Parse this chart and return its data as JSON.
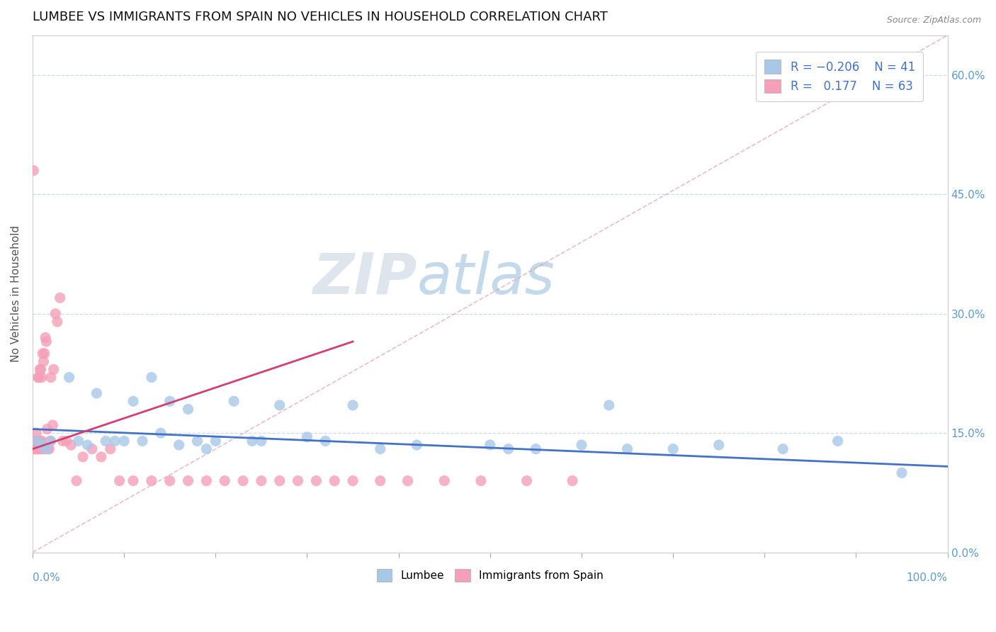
{
  "title": "LUMBEE VS IMMIGRANTS FROM SPAIN NO VEHICLES IN HOUSEHOLD CORRELATION CHART",
  "source_text": "Source: ZipAtlas.com",
  "ylabel": "No Vehicles in Household",
  "lumbee_color": "#a8c8e8",
  "spain_color": "#f4a0b8",
  "lumbee_line_color": "#4472c4",
  "spain_line_color": "#d04070",
  "diagonal_color": "#e0a0b8",
  "watermark_zip": "ZIP",
  "watermark_atlas": "atlas",
  "lumbee_x": [
    0.005,
    0.01,
    0.015,
    0.02,
    0.04,
    0.05,
    0.06,
    0.07,
    0.08,
    0.09,
    0.1,
    0.11,
    0.12,
    0.13,
    0.14,
    0.15,
    0.16,
    0.17,
    0.18,
    0.19,
    0.2,
    0.22,
    0.24,
    0.25,
    0.27,
    0.3,
    0.32,
    0.35,
    0.38,
    0.42,
    0.5,
    0.52,
    0.55,
    0.6,
    0.63,
    0.65,
    0.7,
    0.75,
    0.82,
    0.88,
    0.95
  ],
  "lumbee_y": [
    0.14,
    0.135,
    0.13,
    0.14,
    0.22,
    0.14,
    0.135,
    0.2,
    0.14,
    0.14,
    0.14,
    0.19,
    0.14,
    0.22,
    0.15,
    0.19,
    0.135,
    0.18,
    0.14,
    0.13,
    0.14,
    0.19,
    0.14,
    0.14,
    0.185,
    0.145,
    0.14,
    0.185,
    0.13,
    0.135,
    0.135,
    0.13,
    0.13,
    0.135,
    0.185,
    0.13,
    0.13,
    0.135,
    0.13,
    0.14,
    0.1
  ],
  "spain_x": [
    0.001,
    0.002,
    0.003,
    0.003,
    0.004,
    0.004,
    0.005,
    0.005,
    0.006,
    0.006,
    0.007,
    0.007,
    0.008,
    0.008,
    0.009,
    0.009,
    0.01,
    0.01,
    0.011,
    0.011,
    0.012,
    0.013,
    0.013,
    0.014,
    0.015,
    0.016,
    0.017,
    0.018,
    0.019,
    0.02,
    0.022,
    0.023,
    0.025,
    0.027,
    0.03,
    0.033,
    0.037,
    0.042,
    0.048,
    0.055,
    0.065,
    0.075,
    0.085,
    0.095,
    0.11,
    0.13,
    0.15,
    0.17,
    0.19,
    0.21,
    0.23,
    0.25,
    0.27,
    0.29,
    0.31,
    0.33,
    0.35,
    0.38,
    0.41,
    0.45,
    0.49,
    0.54,
    0.59
  ],
  "spain_y": [
    0.48,
    0.13,
    0.13,
    0.14,
    0.14,
    0.15,
    0.14,
    0.13,
    0.22,
    0.13,
    0.13,
    0.22,
    0.23,
    0.14,
    0.23,
    0.13,
    0.14,
    0.22,
    0.13,
    0.25,
    0.24,
    0.25,
    0.13,
    0.27,
    0.265,
    0.155,
    0.13,
    0.13,
    0.14,
    0.22,
    0.16,
    0.23,
    0.3,
    0.29,
    0.32,
    0.14,
    0.14,
    0.135,
    0.09,
    0.12,
    0.13,
    0.12,
    0.13,
    0.09,
    0.09,
    0.09,
    0.09,
    0.09,
    0.09,
    0.09,
    0.09,
    0.09,
    0.09,
    0.09,
    0.09,
    0.09,
    0.09,
    0.09,
    0.09,
    0.09,
    0.09,
    0.09,
    0.09
  ],
  "xlim": [
    0.0,
    1.0
  ],
  "ylim": [
    0.0,
    0.65
  ],
  "ytick_positions": [
    0.0,
    0.15,
    0.3,
    0.45,
    0.6
  ],
  "ytick_labels": [
    "0.0%",
    "15.0%",
    "30.0%",
    "45.0%",
    "60.0%"
  ],
  "bg_color": "#ffffff",
  "grid_color": "#c8d4e0",
  "title_fontsize": 13,
  "axis_label_fontsize": 11,
  "marker_size": 120
}
